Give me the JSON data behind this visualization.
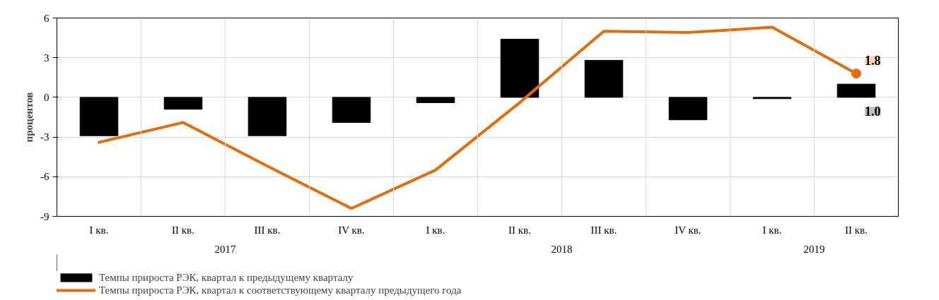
{
  "chart_data": {
    "type": "bar",
    "ylabel": "процентов",
    "categories": [
      [
        "2017",
        "I кв."
      ],
      [
        null,
        "II кв."
      ],
      [
        null,
        "III кв."
      ],
      [
        null,
        "IV кв."
      ],
      [
        "2018",
        "I кв."
      ],
      [
        null,
        "II кв."
      ],
      [
        null,
        "III кв."
      ],
      [
        null,
        "IV кв."
      ],
      [
        "2019",
        "I кв."
      ],
      [
        null,
        "II кв."
      ]
    ],
    "series": [
      {
        "name": "Темпы прироста РЭК, квартал к предыдущему кварталу",
        "color": "#000000",
        "values": [
          -2.9,
          -0.9,
          -2.9,
          -1.9,
          -0.4,
          4.4,
          2.8,
          -1.7,
          -0.1,
          1.0
        ],
        "value_labels": [
          null,
          null,
          null,
          null,
          null,
          null,
          null,
          null,
          null,
          "1.0"
        ]
      },
      {
        "name": "Темпы прироста РЭК, квартал к соответствующему кварталу предыдущего года",
        "type": "line",
        "color": "#e46c0a",
        "values": [
          -3.4,
          -1.9,
          -5.2,
          -8.4,
          -5.5,
          -0.4,
          5.0,
          4.9,
          5.3,
          1.8
        ],
        "value_labels": [
          null,
          null,
          null,
          null,
          null,
          null,
          null,
          null,
          null,
          "1.8"
        ]
      }
    ],
    "ylim": [
      -9,
      6
    ],
    "yticks": [
      -9,
      -6,
      -3,
      0,
      3,
      6
    ],
    "grid": true,
    "legend": "bottom"
  }
}
